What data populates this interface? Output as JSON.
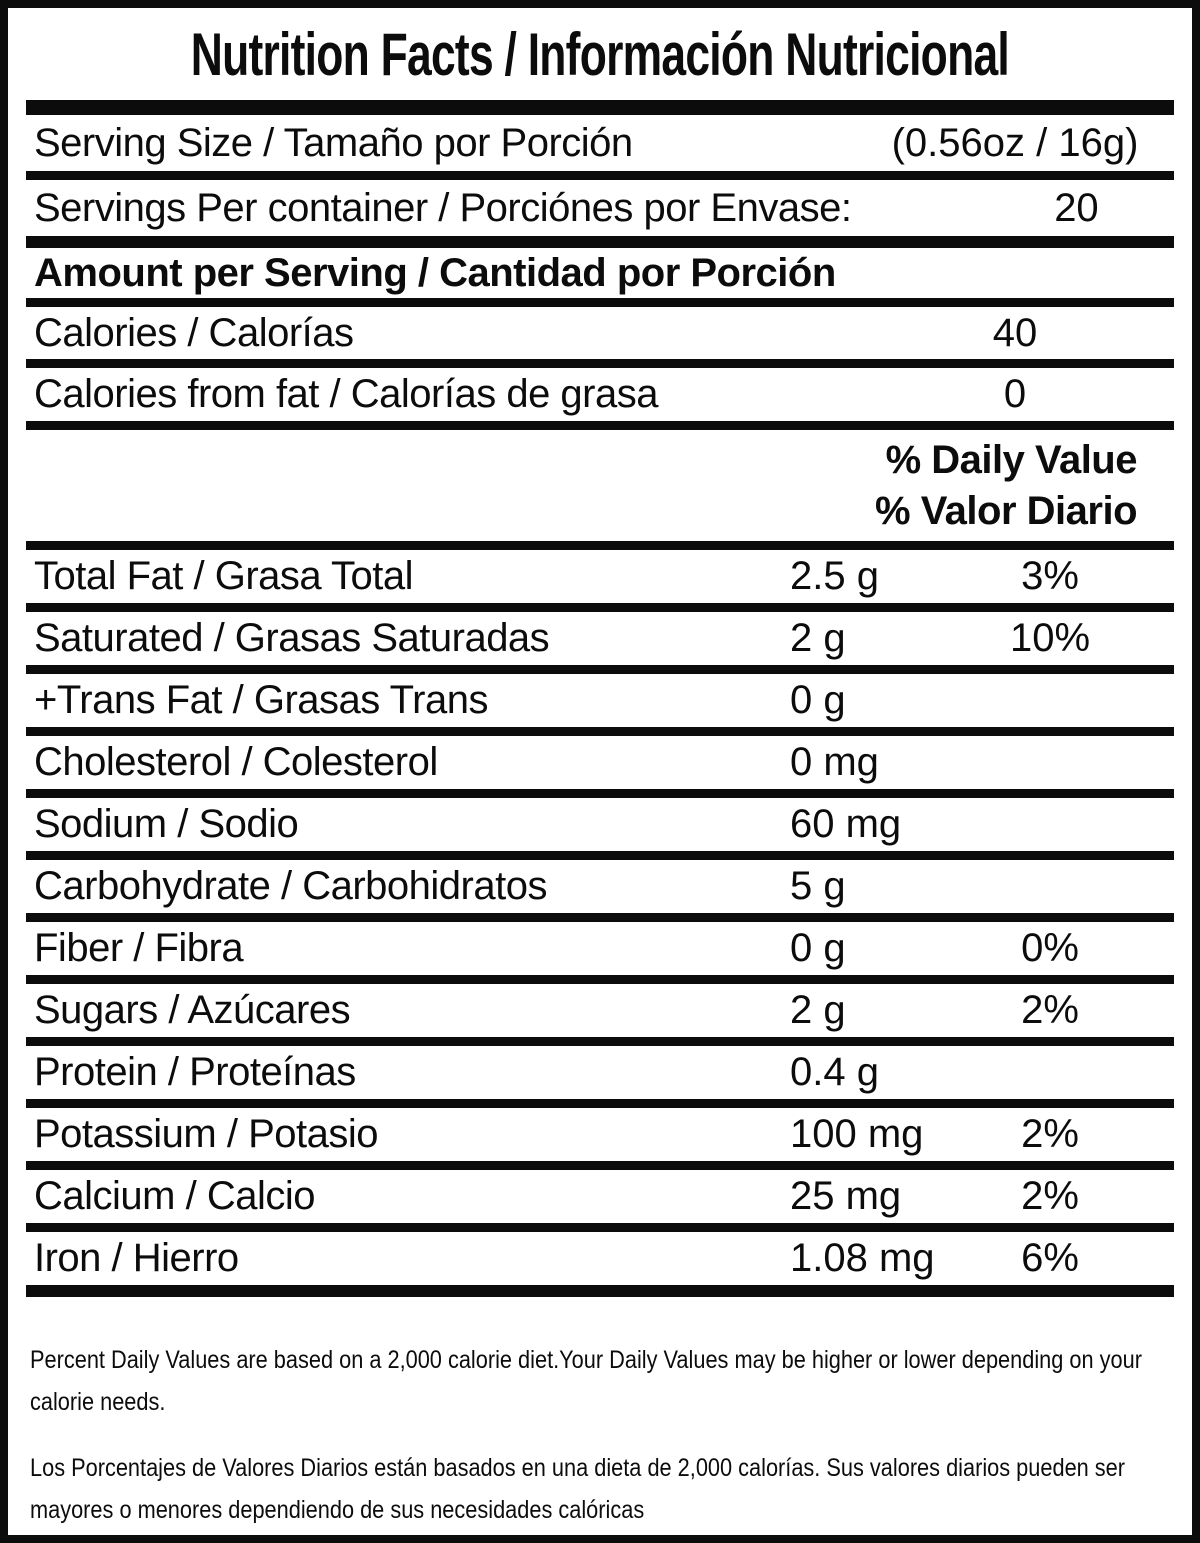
{
  "title": "Nutrition Facts / Información Nutricional",
  "header_rows": [
    {
      "label": "Serving Size / Tamaño por Porción",
      "value": "(0.56oz / 16g)"
    },
    {
      "label": "Servings Per container / Porciónes por Envase:",
      "value": "20"
    }
  ],
  "amount_per_serving_label": "Amount per Serving / Cantidad por Porción",
  "calorie_rows": [
    {
      "label": "Calories / Calorías",
      "value": "40"
    },
    {
      "label": "Calories from fat / Calorías de grasa",
      "value": "0"
    }
  ],
  "daily_value_header": {
    "line1": "% Daily Value",
    "line2": "% Valor Diario"
  },
  "nutrient_rows": [
    {
      "label": "Total Fat / Grasa Total",
      "amount": "2.5 g",
      "dv": "3%"
    },
    {
      "label": "Saturated / Grasas Saturadas",
      "amount": "2 g",
      "dv": "10%"
    },
    {
      "label": "+Trans Fat / Grasas Trans",
      "amount": "0 g",
      "dv": ""
    },
    {
      "label": "Cholesterol / Colesterol",
      "amount": "0 mg",
      "dv": ""
    },
    {
      "label": "Sodium / Sodio",
      "amount": "60 mg",
      "dv": ""
    },
    {
      "label": "Carbohydrate / Carbohidratos",
      "amount": "5 g",
      "dv": ""
    },
    {
      "label": "Fiber / Fibra",
      "amount": "0 g",
      "dv": "0%"
    },
    {
      "label": "Sugars / Azúcares",
      "amount": "2 g",
      "dv": "2%"
    },
    {
      "label": "Protein / Proteínas",
      "amount": "0.4 g",
      "dv": ""
    },
    {
      "label": "Potassium / Potasio",
      "amount": "100 mg",
      "dv": "2%"
    },
    {
      "label": "Calcium / Calcio",
      "amount": "25 mg",
      "dv": "2%"
    },
    {
      "label": "Iron / Hierro",
      "amount": "1.08 mg",
      "dv": "6%"
    }
  ],
  "footnotes": {
    "english": "Percent Daily Values are based on a 2,000 calorie diet.Your Daily Values may be higher or lower depending on your calorie needs.",
    "spanish": "Los Porcentajes de Valores Diarios están basados en una dieta de 2,000 calorías. Sus valores diarios pueden ser mayores o menores dependiendo de sus necesidades calóricas"
  },
  "colors": {
    "ink": "#0c0c0c",
    "background": "#ffffff"
  }
}
